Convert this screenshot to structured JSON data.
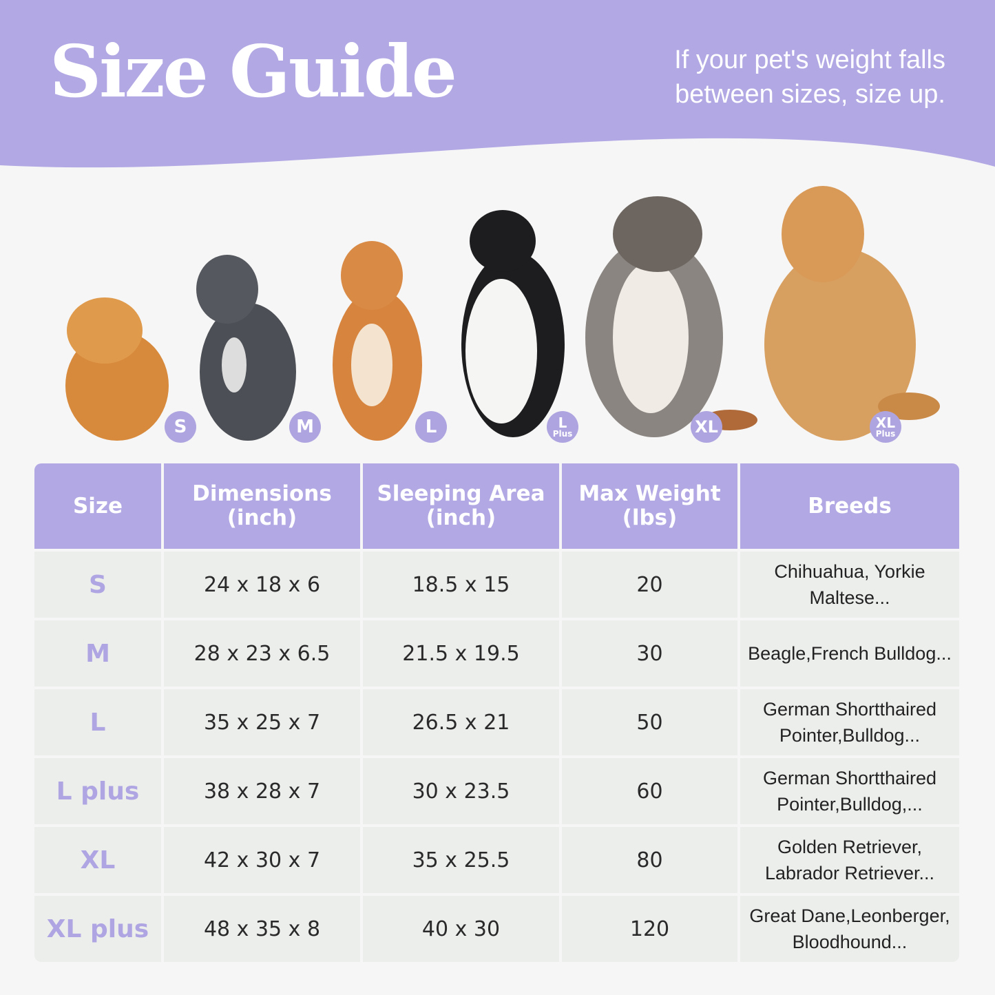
{
  "header": {
    "title": "Size Guide",
    "tip": "If your pet's weight falls between sizes, size up."
  },
  "colors": {
    "accent": "#b1a8e4",
    "cell": "#eceeec",
    "background": "#f6f6f6"
  },
  "dogs": [
    {
      "breed_image": "pomeranian",
      "badge": "S",
      "badge_sub": ""
    },
    {
      "breed_image": "french-bulldog",
      "badge": "M",
      "badge_sub": ""
    },
    {
      "breed_image": "shiba-inu",
      "badge": "L",
      "badge_sub": ""
    },
    {
      "breed_image": "border-collie",
      "badge": "L",
      "badge_sub": "Plus"
    },
    {
      "breed_image": "australian-shepherd",
      "badge": "XL",
      "badge_sub": ""
    },
    {
      "breed_image": "golden-retriever",
      "badge": "XL",
      "badge_sub": "Plus"
    }
  ],
  "table": {
    "headers": [
      "Size",
      "Dimensions\n(inch)",
      "Sleeping Area\n(inch)",
      "Max Weight\n(lbs)",
      "Breeds"
    ],
    "rows": [
      [
        "S",
        "24 x 18 x 6",
        "18.5 x 15",
        "20",
        "Chihuahua, Yorkie Maltese..."
      ],
      [
        "M",
        "28 x 23 x 6.5",
        "21.5 x 19.5",
        "30",
        "Beagle,French Bulldog..."
      ],
      [
        "L",
        "35 x 25 x 7",
        "26.5 x 21",
        "50",
        "German Shortthaired Pointer,Bulldog..."
      ],
      [
        "L plus",
        "38 x 28 x 7",
        "30 x 23.5",
        "60",
        "German Shortthaired Pointer,Bulldog,..."
      ],
      [
        "XL",
        "42 x 30 x 7",
        "35 x 25.5",
        "80",
        "Golden Retriever, Labrador Retriever..."
      ],
      [
        "XL plus",
        "48 x 35 x 8",
        "40 x 30",
        "120",
        "Great Dane,Leonberger, Bloodhound..."
      ]
    ]
  }
}
